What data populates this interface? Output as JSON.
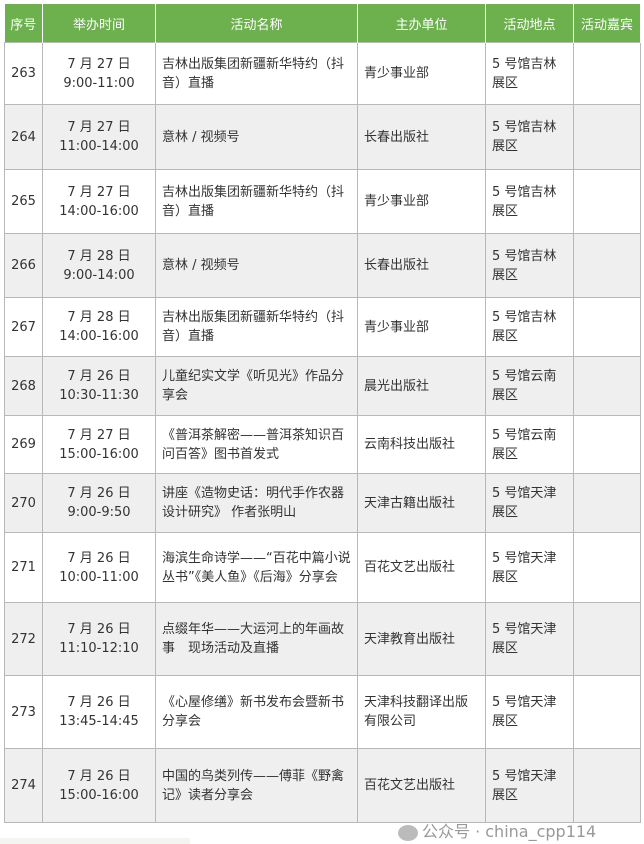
{
  "table": {
    "headers": [
      "序号",
      "举办时间",
      "活动名称",
      "主办单位",
      "活动地点",
      "活动嘉宾"
    ],
    "rows": [
      {
        "no": "263",
        "date": "7 月 27 日",
        "time": "9:00-11:00",
        "name": "吉林出版集团新疆新华特约（抖音）直播",
        "host": "青少事业部",
        "place": "5 号馆吉林展区",
        "guest": ""
      },
      {
        "no": "264",
        "date": "7 月 27 日",
        "time": "11:00-14:00",
        "name": "意林 / 视频号",
        "host": "长春出版社",
        "place": "5 号馆吉林展区",
        "guest": ""
      },
      {
        "no": "265",
        "date": "7 月 27 日",
        "time": "14:00-16:00",
        "name": "吉林出版集团新疆新华特约（抖音）直播",
        "host": "青少事业部",
        "place": "5 号馆吉林展区",
        "guest": ""
      },
      {
        "no": "266",
        "date": "7 月 28 日",
        "time": "9:00-14:00",
        "name": "意林 / 视频号",
        "host": "长春出版社",
        "place": "5 号馆吉林展区",
        "guest": ""
      },
      {
        "no": "267",
        "date": "7 月 28 日",
        "time": "14:00-16:00",
        "name": "吉林出版集团新疆新华特约（抖音）直播",
        "host": "青少事业部",
        "place": "5 号馆吉林展区",
        "guest": ""
      },
      {
        "no": "268",
        "date": "7 月 26 日",
        "time": "10:30-11:30",
        "name": "儿童纪实文学《听见光》作品分享会",
        "host": "晨光出版社",
        "place": "5 号馆云南展区",
        "guest": ""
      },
      {
        "no": "269",
        "date": "7 月 27 日",
        "time": "15:00-16:00",
        "name": "《普洱茶解密——普洱茶知识百问百答》图书首发式",
        "host": "云南科技出版社",
        "place": "5 号馆云南展区",
        "guest": ""
      },
      {
        "no": "270",
        "date": "7 月 26 日",
        "time": "9:00-9:50",
        "name": "讲座《造物史话：明代手作农器设计研究》 作者张明山",
        "host": "天津古籍出版社",
        "place": "5 号馆天津展区",
        "guest": ""
      },
      {
        "no": "271",
        "date": "7 月 26 日",
        "time": "10:00-11:00",
        "name": "海滨生命诗学——“百花中篇小说丛书”《美人鱼》《后海》分享会",
        "host": "百花文艺出版社",
        "place": "5 号馆天津展区",
        "guest": ""
      },
      {
        "no": "272",
        "date": "7 月 26 日",
        "time": "11:10-12:10",
        "name": "点缀年华——大运河上的年画故事　现场活动及直播",
        "host": "天津教育出版社",
        "place": "5 号馆天津展区",
        "guest": ""
      },
      {
        "no": "273",
        "date": "7 月 26 日",
        "time": "13:45-14:45",
        "name": "《心屋修缮》新书发布会暨新书分享会",
        "host": "天津科技翻译出版有限公司",
        "place": "5 号馆天津展区",
        "guest": ""
      },
      {
        "no": "274",
        "date": "7 月 26 日",
        "time": "15:00-16:00",
        "name": "中国的鸟类列传——傅菲《野禽记》读者分享会",
        "host": "百花文艺出版社",
        "place": "5 号馆天津展区",
        "guest": ""
      }
    ]
  },
  "watermark": "公众号 · china_cpp114",
  "colors": {
    "header_bg": "#6db14f",
    "alt_row": "#efefef"
  }
}
